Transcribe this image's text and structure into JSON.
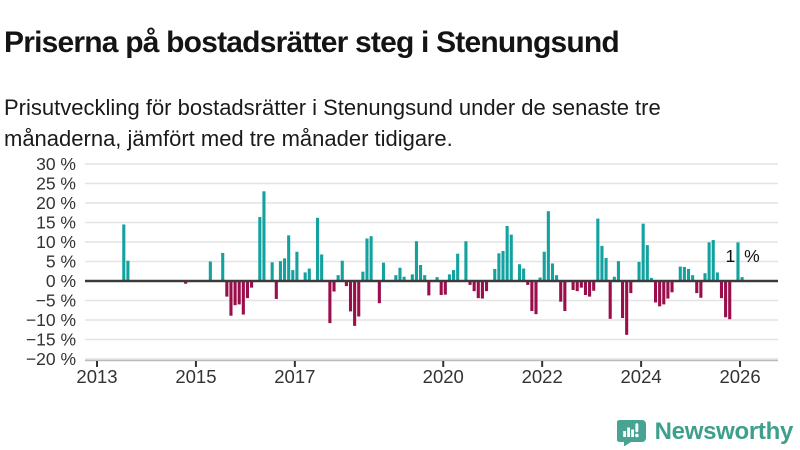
{
  "header": {
    "title": "Priserna på bostadsrätter steg i Stenungsund",
    "subtitle": "Prisutveckling för bostadsrätter i Stenungsund under de senaste tre månaderna, jämfört med tre månader tidigare."
  },
  "brand": {
    "name": "Newsworthy",
    "color": "#3d9f8c",
    "icon_color": "#47a392",
    "icon": "bar-chart-speech-bubble-icon"
  },
  "chart_data": {
    "type": "bar",
    "unit": "%",
    "ylim": [
      -20,
      30
    ],
    "grid": true,
    "y_ticks": [
      30,
      25,
      20,
      15,
      10,
      5,
      0,
      -5,
      -10,
      -15,
      -20
    ],
    "y_tick_labels": [
      "30 %",
      "25 %",
      "20 %",
      "15 %",
      "10 %",
      "5 %",
      "0 %",
      "−5 %",
      "−10 %",
      "−15 %",
      "−20 %"
    ],
    "x_tick_years": [
      2013,
      2015,
      2017,
      2020,
      2022,
      2024,
      2026
    ],
    "colors": {
      "positive": "#14a2a0",
      "negative": "#9a0e4b",
      "zero_line": "#3b3b3b",
      "grid_line": "#e4e4e4",
      "axis_line": "#bbbbbb",
      "tick_text": "#333333"
    },
    "annotation": {
      "label": "1 %"
    },
    "series": [
      [
        "2013-07",
        14.5
      ],
      [
        "2013-08",
        5.2
      ],
      [
        "2014-10",
        -0.7
      ],
      [
        "2015-04",
        5.0
      ],
      [
        "2015-07",
        7.2
      ],
      [
        "2015-08",
        -4.0
      ],
      [
        "2015-09",
        -8.9
      ],
      [
        "2015-10",
        -6.2
      ],
      [
        "2015-11",
        -6.0
      ],
      [
        "2015-12",
        -8.6
      ],
      [
        "2016-01",
        -4.4
      ],
      [
        "2016-02",
        -1.7
      ],
      [
        "2016-04",
        16.4
      ],
      [
        "2016-05",
        23.0
      ],
      [
        "2016-07",
        4.8
      ],
      [
        "2016-08",
        -4.6
      ],
      [
        "2016-09",
        5.1
      ],
      [
        "2016-10",
        5.8
      ],
      [
        "2016-11",
        11.7
      ],
      [
        "2016-12",
        2.8
      ],
      [
        "2017-01",
        7.5
      ],
      [
        "2017-03",
        2.2
      ],
      [
        "2017-04",
        3.2
      ],
      [
        "2017-06",
        16.2
      ],
      [
        "2017-07",
        6.8
      ],
      [
        "2017-09",
        -10.8
      ],
      [
        "2017-10",
        -2.7
      ],
      [
        "2017-11",
        1.5
      ],
      [
        "2017-12",
        5.2
      ],
      [
        "2018-01",
        -1.3
      ],
      [
        "2018-02",
        -7.8
      ],
      [
        "2018-03",
        -11.5
      ],
      [
        "2018-04",
        -9.1
      ],
      [
        "2018-05",
        2.4
      ],
      [
        "2018-06",
        10.9
      ],
      [
        "2018-07",
        11.5
      ],
      [
        "2018-09",
        -5.7
      ],
      [
        "2018-10",
        4.7
      ],
      [
        "2019-01",
        1.5
      ],
      [
        "2019-02",
        3.4
      ],
      [
        "2019-03",
        1.1
      ],
      [
        "2019-05",
        1.7
      ],
      [
        "2019-06",
        10.2
      ],
      [
        "2019-07",
        4.1
      ],
      [
        "2019-08",
        1.5
      ],
      [
        "2019-09",
        -3.7
      ],
      [
        "2019-11",
        1.0
      ],
      [
        "2019-12",
        -3.6
      ],
      [
        "2020-01",
        -3.5
      ],
      [
        "2020-02",
        1.7
      ],
      [
        "2020-03",
        2.8
      ],
      [
        "2020-04",
        7.0
      ],
      [
        "2020-06",
        10.2
      ],
      [
        "2020-07",
        -1.0
      ],
      [
        "2020-08",
        -2.6
      ],
      [
        "2020-09",
        -4.4
      ],
      [
        "2020-10",
        -4.5
      ],
      [
        "2020-11",
        -2.6
      ],
      [
        "2021-01",
        3.1
      ],
      [
        "2021-02",
        7.1
      ],
      [
        "2021-03",
        7.7
      ],
      [
        "2021-04",
        14.1
      ],
      [
        "2021-05",
        11.9
      ],
      [
        "2021-07",
        4.3
      ],
      [
        "2021-08",
        3.2
      ],
      [
        "2021-09",
        -1.0
      ],
      [
        "2021-10",
        -7.7
      ],
      [
        "2021-11",
        -8.5
      ],
      [
        "2021-12",
        0.9
      ],
      [
        "2022-01",
        7.5
      ],
      [
        "2022-02",
        17.9
      ],
      [
        "2022-03",
        4.5
      ],
      [
        "2022-04",
        1.5
      ],
      [
        "2022-05",
        -5.3
      ],
      [
        "2022-06",
        -7.7
      ],
      [
        "2022-08",
        -2.3
      ],
      [
        "2022-09",
        -2.6
      ],
      [
        "2022-10",
        -1.7
      ],
      [
        "2022-11",
        -3.6
      ],
      [
        "2022-12",
        -4.0
      ],
      [
        "2023-01",
        -2.5
      ],
      [
        "2023-02",
        16.0
      ],
      [
        "2023-03",
        9.0
      ],
      [
        "2023-04",
        5.9
      ],
      [
        "2023-05",
        -9.7
      ],
      [
        "2023-06",
        1.1
      ],
      [
        "2023-07",
        5.1
      ],
      [
        "2023-08",
        -9.5
      ],
      [
        "2023-09",
        -13.8
      ],
      [
        "2023-10",
        -3.1
      ],
      [
        "2023-12",
        4.9
      ],
      [
        "2024-01",
        14.7
      ],
      [
        "2024-02",
        9.2
      ],
      [
        "2024-03",
        0.8
      ],
      [
        "2024-04",
        -5.5
      ],
      [
        "2024-05",
        -6.5
      ],
      [
        "2024-06",
        -6.0
      ],
      [
        "2024-07",
        -4.5
      ],
      [
        "2024-08",
        -2.9
      ],
      [
        "2024-10",
        3.7
      ],
      [
        "2024-11",
        3.6
      ],
      [
        "2024-12",
        3.1
      ],
      [
        "2025-01",
        1.5
      ],
      [
        "2025-02",
        -3.1
      ],
      [
        "2025-03",
        -4.3
      ],
      [
        "2025-04",
        2.0
      ],
      [
        "2025-05",
        9.9
      ],
      [
        "2025-06",
        10.5
      ],
      [
        "2025-07",
        2.2
      ],
      [
        "2025-08",
        -4.4
      ],
      [
        "2025-09",
        -9.3
      ],
      [
        "2025-10",
        -9.8
      ],
      [
        "2025-12",
        9.9
      ],
      [
        "2026-01",
        1.0
      ]
    ]
  }
}
